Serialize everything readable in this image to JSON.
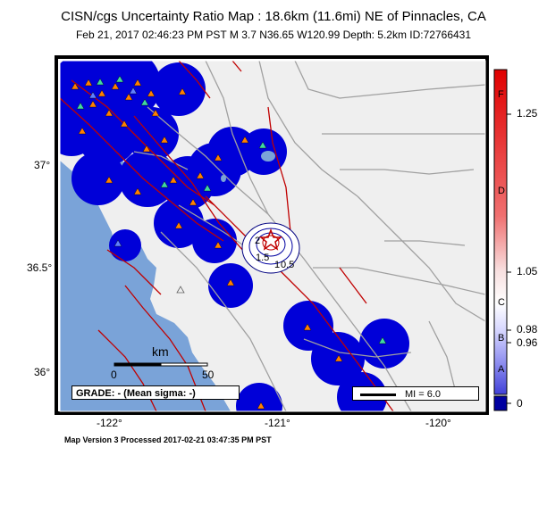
{
  "header": {
    "title": "CISN/cgs Uncertainty Ratio Map : 18.6km (11.6mi) NE of Pinnacles, CA",
    "subtitle": "Feb 21, 2017 02:46:23 PM PST   M 3.7   N36.65 W120.99   Depth: 5.2km   ID:72766431"
  },
  "axes": {
    "lat_labels": [
      "37°",
      "36.5°",
      "36°"
    ],
    "lon_labels": [
      "-122°",
      "-121°",
      "-120°"
    ]
  },
  "scale_bar": {
    "unit": "km",
    "start": "0",
    "end": "50"
  },
  "grade_box": "GRADE: - (Mean sigma: -)",
  "mi_box": "MI = 6.0",
  "footer": "Map Version 3 Processed 2017-02-21 03:47:35 PM PST",
  "colorbar": {
    "ticks": [
      "1.25",
      "1.05",
      "0.98",
      "0.96",
      "0"
    ],
    "grades": [
      "F",
      "D",
      "C",
      "B",
      "A"
    ]
  },
  "contour_labels": [
    "2",
    "1.5",
    "1",
    "0.5"
  ],
  "colors": {
    "land": "#efefef",
    "water": "#7aa3d8",
    "station_blob": "#0000d8",
    "fault": "#c00000",
    "road": "#a0a0a0"
  }
}
